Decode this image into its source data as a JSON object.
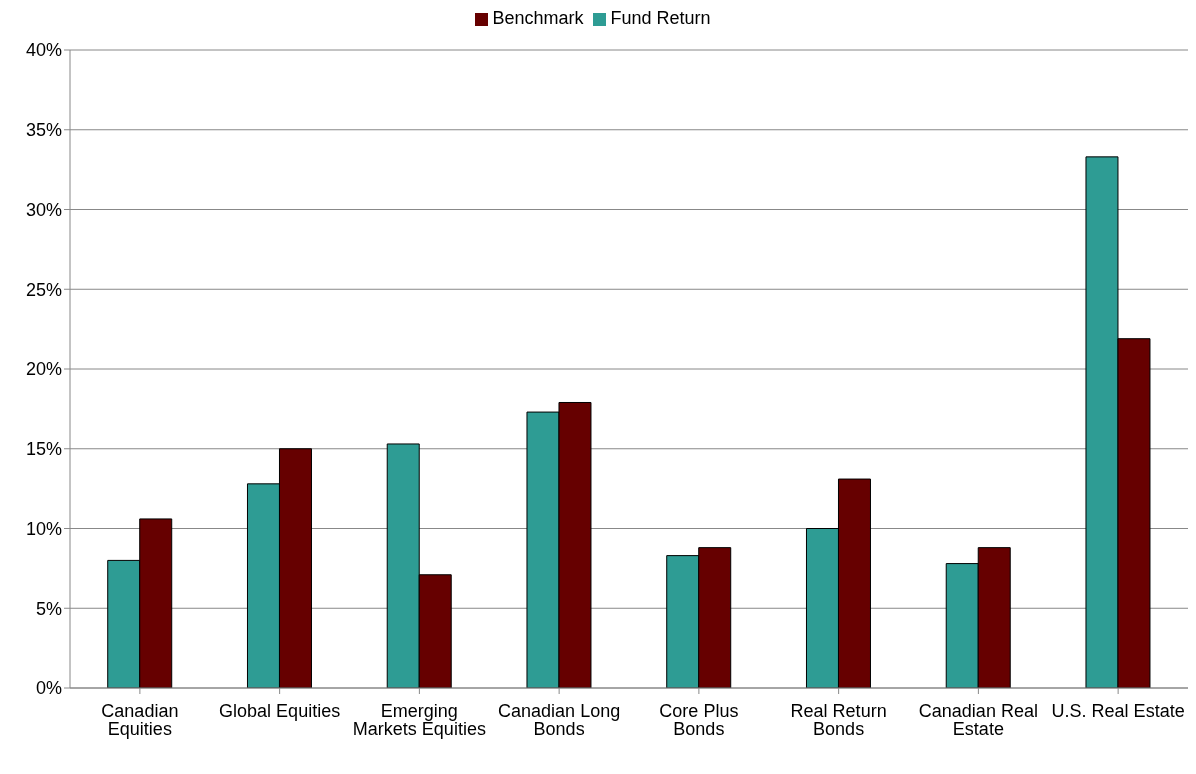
{
  "chart_data": {
    "type": "bar",
    "categories": [
      "Canadian Equities",
      "Global Equities",
      "Emerging Markets Equities",
      "Canadian Long Bonds",
      "Core Plus Bonds",
      "Real Return Bonds",
      "Canadian Real Estate",
      "U.S. Real Estate"
    ],
    "series": [
      {
        "name": "Fund Return",
        "color": "#2e9c94",
        "values": [
          8.0,
          12.8,
          15.3,
          17.3,
          8.3,
          10.0,
          7.8,
          33.3
        ]
      },
      {
        "name": "Benchmark",
        "color": "#660000",
        "values": [
          10.6,
          15.0,
          7.1,
          17.9,
          8.8,
          13.1,
          8.8,
          21.9
        ]
      }
    ],
    "ylim": [
      0,
      40
    ],
    "yticks": [
      {
        "value": 0,
        "label": "0%"
      },
      {
        "value": 5,
        "label": "5%"
      },
      {
        "value": 10,
        "label": "10%"
      },
      {
        "value": 15,
        "label": "15%"
      },
      {
        "value": 20,
        "label": "20%"
      },
      {
        "value": 25,
        "label": "25%"
      },
      {
        "value": 30,
        "label": "30%"
      },
      {
        "value": 35,
        "label": "35%"
      },
      {
        "value": 40,
        "label": "40%"
      }
    ],
    "grid": "y",
    "legend": "top"
  }
}
